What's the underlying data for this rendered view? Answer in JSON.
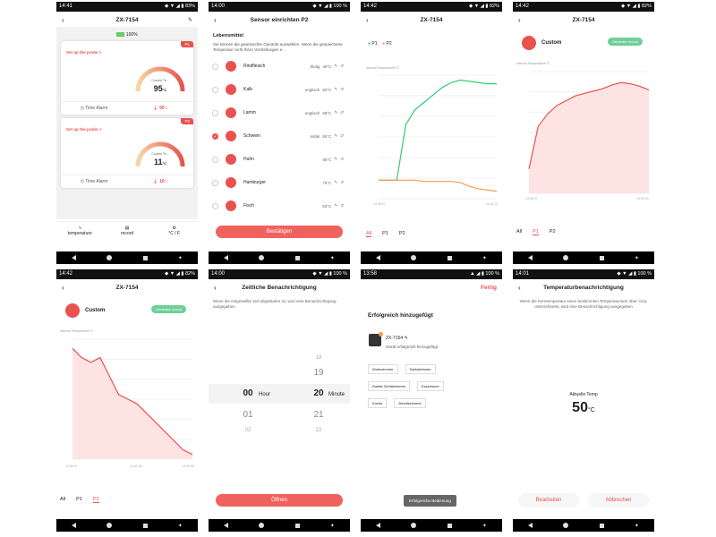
{
  "status": {
    "p1_time": "14:41",
    "p1_icons": "◆ ▼ ◢ ▮ 83%",
    "p2_time": "14:00",
    "p2_icons": "◆ ▼ ◢ ▮ 100 %",
    "p3_time": "14:42",
    "p3_icons": "◆ ▼ ◢ ▮ 82%",
    "p4_time": "14:42",
    "p4_icons": "◆ ▼ ◢ ▮ 82%",
    "p5_time": "14:42",
    "p5_icons": "◆ ▼ ◢ ▮ 82%",
    "p6_time": "14:00",
    "p6_icons": "◆ ▼ ◢ ▮ 100 %",
    "p7_time": "13:58",
    "p7_icons": "▲ ◢ ▮ 100 %",
    "p8_time": "14:01",
    "p8_icons": "◆ ▼ ◢ ▮ 100 %"
  },
  "device": "ZX-7154",
  "home": {
    "battery": "100%",
    "probe1": {
      "tag": "P1",
      "setup": "Set up the probe >",
      "temp": "95",
      "unit": "°C",
      "sub": "Current Te...",
      "alarm": "Time Alarm",
      "target": "90",
      "target_unit": "°C"
    },
    "probe2": {
      "tag": "P2",
      "setup": "Set up the probe >",
      "temp": "11",
      "unit": "°C",
      "sub": "Current Te...",
      "alarm": "Time Alarm",
      "target": "10",
      "target_unit": "°C"
    },
    "nav": [
      "temperature",
      "record",
      "°C / F"
    ]
  },
  "sensor": {
    "title": "Sensor einrichten P2",
    "heading": "Lebensmittel",
    "desc": "Sie können die gewünschte Garstufe auswählen. Wenn die gespeicherte Temperatur nicht Ihren Vorstellungen e...",
    "foods": [
      {
        "name": "Rindfleisch",
        "level": "blutig",
        "temp": "49°C"
      },
      {
        "name": "Kalb",
        "level": "englisch",
        "temp": "60°C"
      },
      {
        "name": "Lamm",
        "level": "englisch",
        "temp": "58°C"
      },
      {
        "name": "Schwein",
        "level": "mittel",
        "temp": "65°C"
      },
      {
        "name": "Huhn",
        "level": "",
        "temp": "85°C"
      },
      {
        "name": "Hamburger",
        "level": "",
        "temp": "75°C"
      },
      {
        "name": "Fisch",
        "level": "",
        "temp": "63°C"
      }
    ],
    "confirm": "Bestätigen"
  },
  "chart_p1p2": {
    "legend1": "P1",
    "legend2": "P2",
    "ylabel": "Internal Temperature/°C",
    "t0": "14:38:07",
    "t1": "14:41:37",
    "tabs": [
      "All",
      "P1",
      "P2"
    ]
  },
  "custom1": {
    "name": "Custom",
    "button": "Generate record",
    "ylabel": "Internal Temperature/°C",
    "t0": "14:38:07",
    "t1": "14:40:33",
    "tabs": [
      "All",
      "P1",
      "P2"
    ]
  },
  "custom2": {
    "name": "Custom",
    "button": "Generate record",
    "ylabel": "Internal Temperature/°C",
    "t0": "14:40:07",
    "t1": "14:40:33",
    "t2": "14:40:55",
    "tabs": [
      "All",
      "P1",
      "P2"
    ]
  },
  "timer": {
    "title": "Zeitliche Benachrichtigung",
    "desc": "Wenn die eingestellte Zeit abgelaufen ist, wird eine Benachrichtigung ausgegeben",
    "h_prev": "",
    "h": "00",
    "h_next": "01",
    "h_next2": "02",
    "m_prev2": "18",
    "m_prev": "19",
    "m": "20",
    "m_next": "21",
    "m_next2": "22",
    "hour": "Hour",
    "minute": "Minute",
    "open": "Öffnen"
  },
  "added": {
    "done": "Fertig",
    "title": "Erfolgreich hinzugefügt",
    "device": "ZX-7154",
    "msg": "Gerät erfolgreich hinzugefügt",
    "rooms": [
      "Wohnzimmer",
      "Schlafzimmer",
      "Zweite Schlafzimmer",
      "Esszimmer",
      "Küche",
      "Arbeitszimmer"
    ],
    "toast": "Erfolgreiche Bedienung"
  },
  "tempnote": {
    "title": "Temperaturbenachrichtigung",
    "desc": "Wenn die Kerntemperatur einen bestimmten Temperaturwert über- bzw. unterschreitet, wird eine Benachrichtigung ausgegeben",
    "label": "Aktuelle Temp",
    "value": "50",
    "unit": "°C",
    "edit": "Bearbeiten",
    "cancel": "Abbrechen"
  },
  "chart_data": [
    {
      "type": "line",
      "series": [
        {
          "name": "P1",
          "values": [
            15,
            15,
            15,
            60,
            72,
            78,
            84,
            90,
            94,
            96,
            95,
            94,
            93,
            93
          ]
        },
        {
          "name": "P2",
          "values": [
            15,
            15,
            15,
            15,
            15,
            14,
            14,
            14,
            14,
            13,
            10,
            8,
            7,
            6
          ]
        }
      ],
      "ylim": [
        0,
        100
      ]
    },
    {
      "type": "area",
      "series": [
        {
          "values": [
            20,
            55,
            65,
            72,
            76,
            80,
            82,
            84,
            86,
            89,
            91,
            90,
            88,
            85
          ]
        }
      ],
      "ylim": [
        0,
        100
      ]
    },
    {
      "type": "area",
      "series": [
        {
          "values": [
            21,
            20,
            19.5,
            20,
            18,
            16,
            15.5,
            15,
            14,
            13,
            12,
            11,
            10,
            9.5
          ]
        }
      ],
      "ylim": [
        9,
        22
      ]
    }
  ]
}
